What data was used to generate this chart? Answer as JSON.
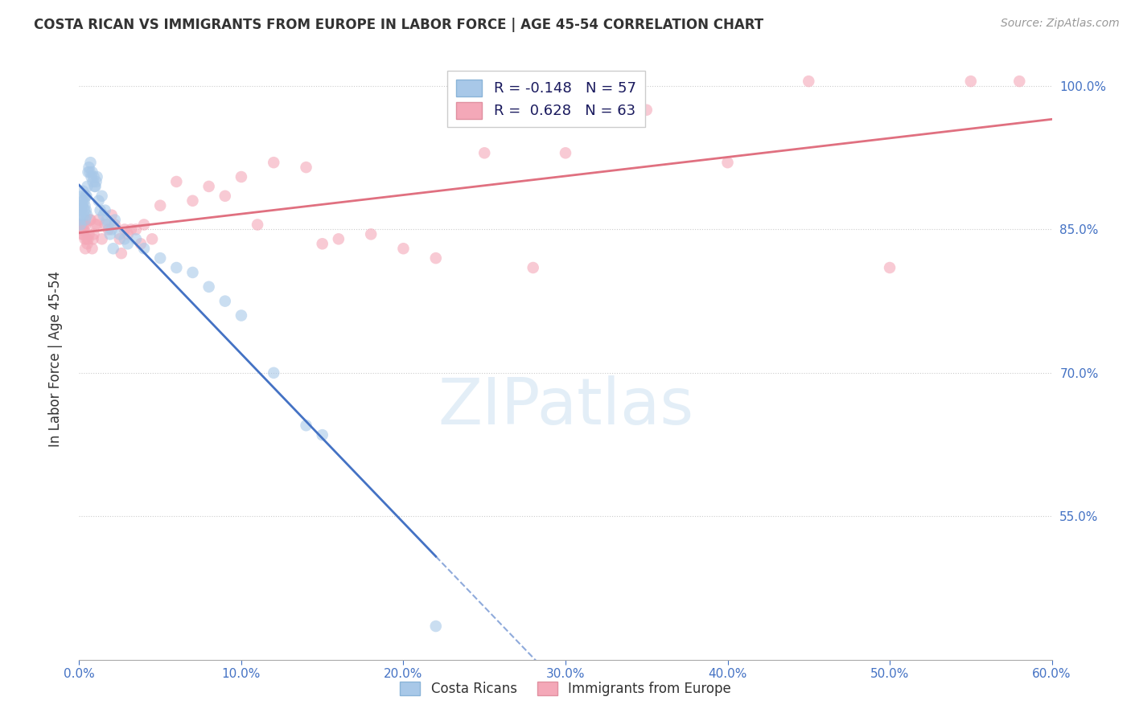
{
  "title": "COSTA RICAN VS IMMIGRANTS FROM EUROPE IN LABOR FORCE | AGE 45-54 CORRELATION CHART",
  "source": "Source: ZipAtlas.com",
  "ylabel_label": "In Labor Force | Age 45-54",
  "xmin": 0.0,
  "xmax": 60.0,
  "ymin": 40.0,
  "ymax": 103.0,
  "yticks": [
    55.0,
    70.0,
    85.0,
    100.0
  ],
  "xticks": [
    0.0,
    10.0,
    20.0,
    30.0,
    40.0,
    50.0,
    60.0
  ],
  "cr_color": "#a8c8e8",
  "eu_color": "#f4a8b8",
  "cr_line_color": "#4472c4",
  "eu_line_color": "#e07080",
  "watermark_text": "ZIPatlas",
  "watermark_color": "#c8dff0",
  "dot_size": 110,
  "dot_alpha": 0.6,
  "cr_R": -0.148,
  "cr_N": 57,
  "eu_R": 0.628,
  "eu_N": 63,
  "cr_x": [
    0.05,
    0.08,
    0.1,
    0.12,
    0.15,
    0.18,
    0.2,
    0.22,
    0.25,
    0.28,
    0.3,
    0.32,
    0.35,
    0.38,
    0.4,
    0.42,
    0.45,
    0.48,
    0.5,
    0.55,
    0.6,
    0.65,
    0.7,
    0.75,
    0.8,
    0.85,
    0.9,
    0.95,
    1.0,
    1.05,
    1.1,
    1.2,
    1.3,
    1.4,
    1.5,
    1.6,
    1.7,
    1.8,
    1.9,
    2.0,
    2.1,
    2.2,
    2.5,
    2.8,
    3.0,
    3.5,
    4.0,
    5.0,
    6.0,
    7.0,
    8.0,
    9.0,
    10.0,
    12.0,
    14.0,
    15.0,
    22.0
  ],
  "cr_y": [
    86.0,
    85.5,
    86.5,
    87.0,
    87.5,
    88.0,
    88.5,
    87.5,
    89.0,
    86.5,
    88.0,
    87.0,
    87.5,
    86.0,
    88.5,
    87.0,
    88.5,
    86.5,
    89.5,
    91.0,
    91.5,
    91.0,
    92.0,
    90.5,
    91.0,
    90.0,
    90.5,
    89.5,
    89.5,
    90.0,
    90.5,
    88.0,
    87.0,
    88.5,
    86.5,
    87.0,
    86.0,
    85.5,
    84.5,
    85.0,
    83.0,
    86.0,
    84.5,
    84.0,
    83.5,
    84.0,
    83.0,
    82.0,
    81.0,
    80.5,
    79.0,
    77.5,
    76.0,
    70.0,
    64.5,
    63.5,
    43.5
  ],
  "eu_x": [
    0.05,
    0.08,
    0.1,
    0.12,
    0.15,
    0.18,
    0.2,
    0.22,
    0.25,
    0.28,
    0.3,
    0.35,
    0.4,
    0.45,
    0.5,
    0.55,
    0.6,
    0.7,
    0.8,
    0.9,
    1.0,
    1.2,
    1.4,
    1.6,
    1.8,
    2.0,
    2.2,
    2.5,
    2.8,
    3.0,
    3.5,
    4.0,
    5.0,
    6.0,
    7.0,
    8.0,
    9.0,
    10.0,
    11.0,
    12.0,
    14.0,
    15.0,
    16.0,
    18.0,
    20.0,
    22.0,
    25.0,
    28.0,
    30.0,
    35.0,
    40.0,
    45.0,
    50.0,
    55.0,
    58.0,
    3.2,
    2.6,
    3.8,
    1.1,
    0.38,
    0.65,
    4.5,
    0.85
  ],
  "eu_y": [
    85.5,
    85.0,
    85.5,
    85.0,
    85.5,
    85.0,
    84.5,
    85.0,
    84.5,
    85.0,
    85.5,
    84.0,
    85.5,
    84.0,
    83.5,
    84.0,
    84.5,
    86.0,
    83.0,
    84.5,
    85.5,
    86.0,
    84.0,
    85.5,
    85.0,
    86.5,
    85.5,
    84.0,
    85.0,
    84.5,
    85.0,
    85.5,
    87.5,
    90.0,
    88.0,
    89.5,
    88.5,
    90.5,
    85.5,
    92.0,
    91.5,
    83.5,
    84.0,
    84.5,
    83.0,
    82.0,
    93.0,
    81.0,
    93.0,
    97.5,
    92.0,
    100.5,
    81.0,
    100.5,
    100.5,
    85.0,
    82.5,
    83.5,
    85.5,
    83.0,
    86.0,
    84.0,
    84.0
  ]
}
